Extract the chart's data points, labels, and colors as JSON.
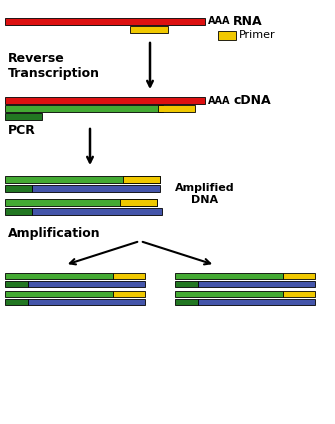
{
  "bg_color": "#ffffff",
  "colors": {
    "red": "#dd1111",
    "yellow": "#f0c800",
    "green": "#44aa33",
    "dark_green": "#227722",
    "blue": "#4455aa"
  },
  "rna_label": "RNA",
  "rna_aaa": "AAA",
  "cdna_label": "cDNA",
  "cdna_aaa": "AAA",
  "primer_label": "Primer",
  "reverse_transcription_label": "Reverse\nTranscription",
  "pcr_label": "PCR",
  "amplified_dna_label": "Amplified\nDNA",
  "amplification_label": "Amplification"
}
